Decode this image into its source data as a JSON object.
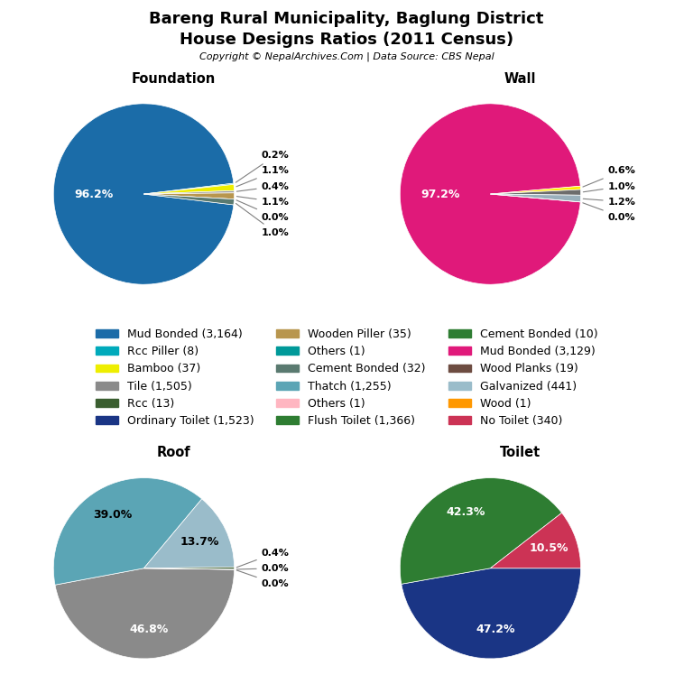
{
  "title": "Bareng Rural Municipality, Baglung District",
  "subtitle": "House Designs Ratios (2011 Census)",
  "annotations": [
    "Copyright © NepalArchives.Com | Data Source: CBS Nepal"
  ],
  "legend": "center",
  "series": [
    {
      "name": "Mud Bonded (3,164)",
      "color": "#1b6ca8"
    },
    {
      "name": "Rcc Piller (8)",
      "color": "#00aabb"
    },
    {
      "name": "Bamboo (37)",
      "color": "#eeee00"
    },
    {
      "name": "Tile (1,505)",
      "color": "#8a8a8a"
    },
    {
      "name": "Rcc (13)",
      "color": "#3a5e30"
    },
    {
      "name": "Ordinary Toilet (1,523)",
      "color": "#1a3585"
    },
    {
      "name": "Wooden Piller (35)",
      "color": "#b8964e"
    },
    {
      "name": "Others (1)",
      "color": "#009999"
    },
    {
      "name": "Cement Bonded (32)",
      "color": "#5a7a70"
    },
    {
      "name": "Thatch (1,255)",
      "color": "#5ba5b5"
    },
    {
      "name": "Others (1)",
      "color": "#ffb6c1"
    },
    {
      "name": "Flush Toilet (1,366)",
      "color": "#2e7d32"
    },
    {
      "name": "Cement Bonded (10)",
      "color": "#2e7d32"
    },
    {
      "name": "Mud Bonded (3,129)",
      "color": "#e0197a"
    },
    {
      "name": "Wood Planks (19)",
      "color": "#6d4c41"
    },
    {
      "name": "Galvanized (441)",
      "color": "#9abcca"
    },
    {
      "name": "Wood (1)",
      "color": "#ff9800"
    },
    {
      "name": "No Toilet (340)",
      "color": "#cc3355"
    }
  ],
  "chart_data": [
    {
      "type": "pie",
      "title": "Foundation",
      "values": [
        96.2,
        0.2,
        1.1,
        0.4,
        1.1,
        0.0,
        1.0
      ],
      "value_labels": [
        "96.2%",
        "0.2%",
        "1.1%",
        "0.4%",
        "1.1%",
        "0.0%",
        "1.0%"
      ],
      "colors": [
        "#1b6ca8",
        "#00aabb",
        "#eeee00",
        "#999999",
        "#b8964e",
        "#009999",
        "#5a7a70"
      ],
      "data_labels": true
    },
    {
      "type": "pie",
      "title": "Wall",
      "values": [
        97.2,
        0.6,
        1.0,
        1.2,
        0.0
      ],
      "value_labels": [
        "97.2%",
        "0.6%",
        "1.0%",
        "1.2%",
        "0.0%"
      ],
      "colors": [
        "#e0197a",
        "#ffee00",
        "#6d6d6d",
        "#9ab0bc",
        "#6d4c41"
      ],
      "data_labels": true
    },
    {
      "type": "pie",
      "title": "Roof",
      "values": [
        46.8,
        39.0,
        13.7,
        0.4,
        0.0,
        0.0
      ],
      "value_labels": [
        "46.8%",
        "39.0%",
        "13.7%",
        "0.4%",
        "0.0%",
        "0.0%"
      ],
      "colors": [
        "#8a8a8a",
        "#5ba5b5",
        "#9abcca",
        "#3a5e30",
        "#b8964e",
        "#5a7a70"
      ],
      "data_labels": true
    },
    {
      "type": "pie",
      "title": "Toilet",
      "values": [
        47.2,
        42.3,
        10.5
      ],
      "value_labels": [
        "47.2%",
        "42.3%",
        "10.5%"
      ],
      "colors": [
        "#1a3585",
        "#2e7d32",
        "#cc3355"
      ],
      "data_labels": true
    }
  ]
}
